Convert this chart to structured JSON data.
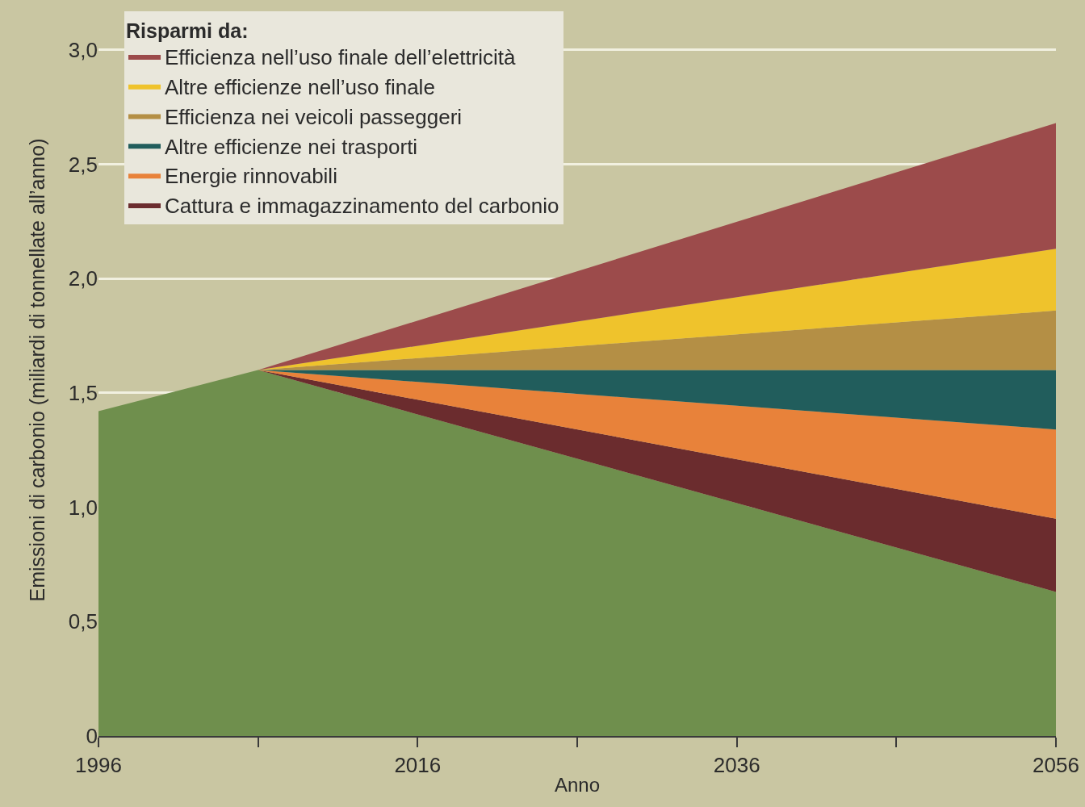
{
  "chart_data": {
    "type": "area",
    "stacked": true,
    "xlabel": "Anno",
    "ylabel": "Emissioni di carbonio (miliardi di tonnellate all’anno)",
    "legend_title": "Risparmi da:",
    "x": [
      1996,
      2006,
      2056
    ],
    "series": [
      {
        "color": "#6f8f4d",
        "values": [
          1.42,
          1.6,
          0.63
        ]
      },
      {
        "name": "Cattura e immagazzinamento del carbonio",
        "color": "#6b2c2e",
        "values": [
          0,
          0,
          0.32
        ]
      },
      {
        "name": "Energie rinnovabili",
        "color": "#e8823a",
        "values": [
          0,
          0,
          0.39
        ]
      },
      {
        "name": "Altre efficienze nei trasporti",
        "color": "#215d5c",
        "values": [
          0,
          0,
          0.26
        ]
      },
      {
        "name": "Efficienza nei veicoli passeggeri",
        "color": "#b48f45",
        "values": [
          0,
          0,
          0.26
        ]
      },
      {
        "name": "Altre efficienze nell’uso finale",
        "color": "#efc32c",
        "values": [
          0,
          0,
          0.27
        ]
      },
      {
        "name": "Efficienza nell’uso finale dell’elettricità",
        "color": "#9c4b4b",
        "values": [
          0,
          0,
          0.55
        ]
      }
    ],
    "xlim": [
      1996,
      2056
    ],
    "xticks": [
      1996,
      {
        "value": 2006,
        "label": null
      },
      2016,
      {
        "value": 2026,
        "label": null
      },
      2036,
      {
        "value": 2046,
        "label": null
      },
      2056
    ],
    "ylim": [
      0,
      3.2
    ],
    "yticks": [
      0,
      {
        "value": 0.5,
        "label": "0,5"
      },
      {
        "value": 1.0,
        "label": "1,0"
      },
      {
        "value": 1.5,
        "label": "1,5"
      },
      {
        "value": 2.0,
        "label": "2,0"
      },
      {
        "value": 2.5,
        "label": "2,5"
      },
      {
        "value": 3.0,
        "label": "3,0"
      }
    ],
    "grid": "y",
    "legend": "top left"
  }
}
